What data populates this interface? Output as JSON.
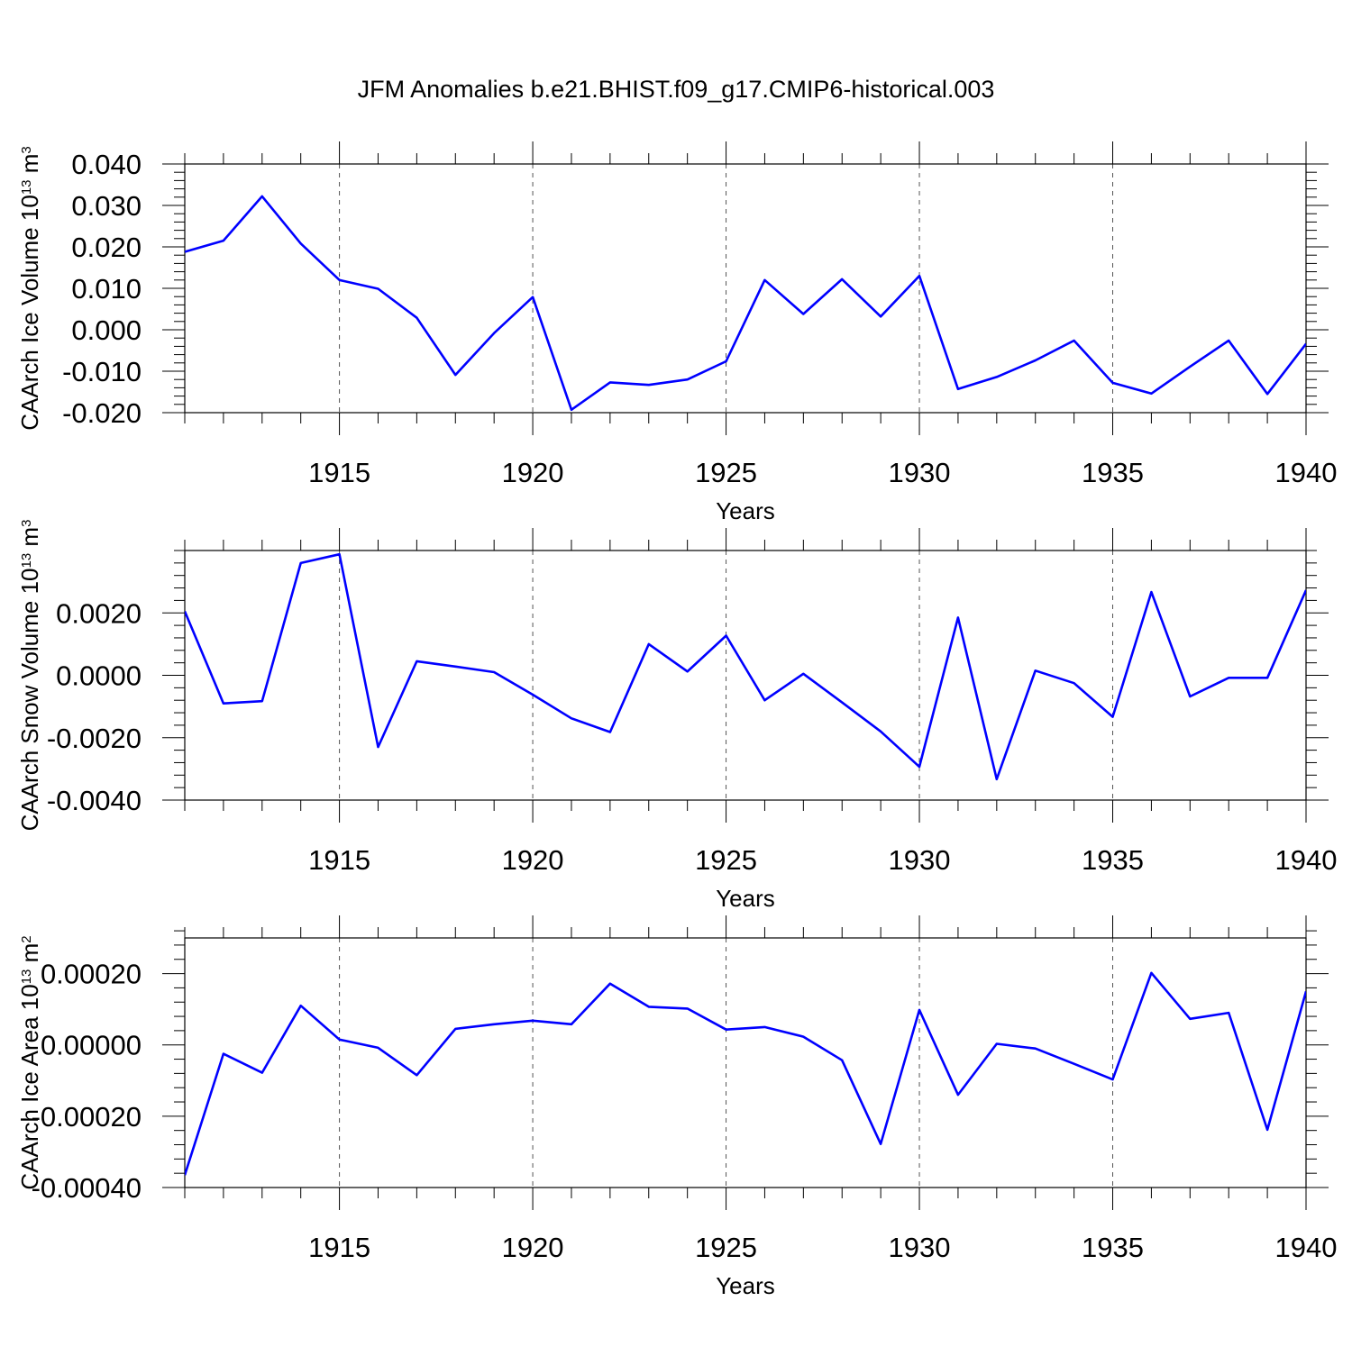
{
  "title": "JFM Anomalies b.e21.BHIST.f09_g17.CMIP6-historical.003",
  "colors": {
    "line": "#0000ff",
    "axes": "#000000",
    "grid": "#555555"
  },
  "chart_data": [
    {
      "type": "line",
      "title": "JFM Anomalies b.e21.BHIST.f09_g17.CMIP6-historical.003",
      "xlabel": "Years",
      "ylabel": "CAArch Ice Volume 10",
      "ylabel_sup": "13",
      "ylabel_unit": "m",
      "ylabel_unit_sup": "3",
      "xlim": [
        1911,
        1940
      ],
      "ylim": [
        -0.02,
        0.04
      ],
      "x_ticks": [
        1915,
        1920,
        1925,
        1930,
        1935,
        1940
      ],
      "y_ticks": [
        -0.02,
        -0.01,
        0.0,
        0.01,
        0.02,
        0.03,
        0.04
      ],
      "y_tick_labels": [
        "-0.020",
        "-0.010",
        "0.000",
        "0.010",
        "0.020",
        "0.030",
        "0.040"
      ],
      "grid": "vertical dashed at major x ticks",
      "series": [
        {
          "x": [
            1911,
            1912,
            1913,
            1914,
            1915,
            1916,
            1917,
            1918,
            1919,
            1920,
            1921,
            1922,
            1923,
            1924,
            1925,
            1926,
            1927,
            1928,
            1929,
            1930,
            1931,
            1932,
            1933,
            1934,
            1935,
            1936,
            1937,
            1938,
            1939,
            1940
          ],
          "values": [
            0.0188,
            0.0215,
            0.0322,
            0.0208,
            0.012,
            0.0099,
            0.0029,
            -0.0109,
            -0.0008,
            0.0079,
            -0.0193,
            -0.0127,
            -0.0133,
            -0.012,
            -0.0076,
            0.012,
            0.0038,
            0.0122,
            0.0032,
            0.013,
            -0.0143,
            -0.0114,
            -0.0074,
            -0.0026,
            -0.0128,
            -0.0154,
            -0.0089,
            -0.0026,
            -0.0155,
            -0.0034
          ]
        }
      ]
    },
    {
      "type": "line",
      "xlabel": "Years",
      "ylabel": "CAArch Snow Volume 10",
      "ylabel_sup": "13",
      "ylabel_unit": "m",
      "ylabel_unit_sup": "3",
      "xlim": [
        1911,
        1940
      ],
      "ylim": [
        -0.004,
        0.004
      ],
      "x_ticks": [
        1915,
        1920,
        1925,
        1930,
        1935,
        1940
      ],
      "y_ticks": [
        -0.004,
        -0.002,
        0.0,
        0.002
      ],
      "y_tick_labels": [
        "-0.0040",
        "-0.0020",
        "0.0000",
        "0.0020"
      ],
      "grid": "vertical dashed at major x ticks",
      "series": [
        {
          "x": [
            1911,
            1912,
            1913,
            1914,
            1915,
            1916,
            1917,
            1918,
            1919,
            1920,
            1921,
            1922,
            1923,
            1924,
            1925,
            1926,
            1927,
            1928,
            1929,
            1930,
            1931,
            1932,
            1933,
            1934,
            1935,
            1936,
            1937,
            1938,
            1939,
            1940
          ],
          "values": [
            0.00205,
            -0.0009,
            -0.00083,
            0.0036,
            0.00388,
            -0.0023,
            0.00045,
            0.00028,
            0.0001,
            -0.00062,
            -0.00138,
            -0.00182,
            0.001,
            0.00012,
            0.00127,
            -0.0008,
            5e-05,
            -0.00087,
            -0.0018,
            -0.00293,
            0.00185,
            -0.00333,
            0.00015,
            -0.00025,
            -0.00133,
            0.00267,
            -0.00068,
            -8e-05,
            -8e-05,
            0.00273
          ]
        }
      ]
    },
    {
      "type": "line",
      "xlabel": "Years",
      "ylabel": "CAArch Ice Area 10",
      "ylabel_sup": "13",
      "ylabel_unit": "m",
      "ylabel_unit_sup": "2",
      "xlim": [
        1911,
        1940
      ],
      "ylim": [
        -0.0004,
        0.0003
      ],
      "x_ticks": [
        1915,
        1920,
        1925,
        1930,
        1935,
        1940
      ],
      "y_ticks": [
        -0.0004,
        -0.0002,
        0.0,
        0.0002
      ],
      "y_tick_labels": [
        "-0.00040",
        "-0.00020",
        "0.00000",
        "0.00020"
      ],
      "grid": "vertical dashed at major x ticks",
      "series": [
        {
          "x": [
            1911,
            1912,
            1913,
            1914,
            1915,
            1916,
            1917,
            1918,
            1919,
            1920,
            1921,
            1922,
            1923,
            1924,
            1925,
            1926,
            1927,
            1928,
            1929,
            1930,
            1931,
            1932,
            1933,
            1934,
            1935,
            1936,
            1937,
            1938,
            1939,
            1940
          ],
          "values": [
            -0.000365,
            -2.5e-05,
            -7.8e-05,
            0.00011,
            1.5e-05,
            -8e-06,
            -8.5e-05,
            4.5e-05,
            5.8e-05,
            6.8e-05,
            5.8e-05,
            0.000172,
            0.000107,
            0.000102,
            4.3e-05,
            5e-05,
            2.3e-05,
            -4.3e-05,
            -0.000278,
            9.8e-05,
            -0.00014,
            3e-06,
            -1e-05,
            -5.3e-05,
            -9.7e-05,
            0.000202,
            7.3e-05,
            9e-05,
            -0.000238,
            0.00015
          ]
        }
      ]
    }
  ]
}
